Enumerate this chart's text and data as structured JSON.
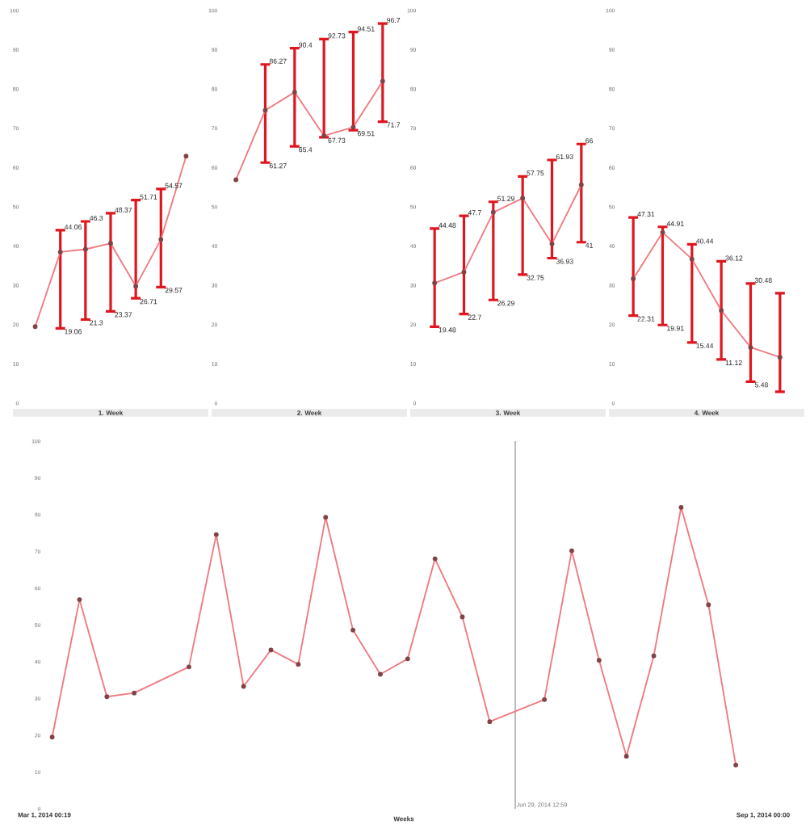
{
  "chart_data": [
    {
      "type": "line",
      "xlabel": "1. Week",
      "categories": [
        null,
        null,
        null,
        null,
        null,
        null,
        null
      ],
      "values": [
        19.5,
        38.5,
        39.2,
        40.7,
        29.8,
        41.7,
        62.9
      ],
      "errors": [
        null,
        [
          19.06,
          44.06
        ],
        [
          21.3,
          46.3
        ],
        [
          23.37,
          48.37
        ],
        [
          26.71,
          51.71
        ],
        [
          29.57,
          54.57
        ],
        null
      ],
      "color": "#ef7a80",
      "marker": "circle",
      "ylim": [
        0,
        100
      ],
      "yticks": [
        0,
        10,
        20,
        30,
        40,
        50,
        60,
        70,
        80,
        90,
        100
      ],
      "annotations": [
        "44.06",
        "19.06",
        "46.3",
        "21.3",
        "48.37",
        "23.37",
        "51.71",
        "26.71",
        "54.57",
        "29.57"
      ]
    },
    {
      "type": "line",
      "xlabel": "2. Week",
      "categories": [
        null,
        null,
        null,
        null,
        null,
        null
      ],
      "values": [
        56.9,
        74.6,
        79.2,
        68.1,
        70.3,
        82.0
      ],
      "errors": [
        null,
        [
          61.27,
          86.27
        ],
        [
          65.4,
          90.4
        ],
        [
          67.73,
          92.73
        ],
        [
          69.51,
          94.51
        ],
        [
          71.7,
          96.7
        ]
      ],
      "color": "#ef7a80",
      "marker": "circle",
      "ylim": [
        0,
        100
      ],
      "yticks": [
        0,
        10,
        20,
        30,
        40,
        50,
        60,
        70,
        80,
        90,
        100
      ],
      "annotations": [
        "86.27",
        "61.27",
        "90.4",
        "65.4",
        "92.73",
        "67.73",
        "94.51",
        "69.51",
        "96.7",
        "71.7"
      ]
    },
    {
      "type": "line",
      "xlabel": "3. Week",
      "categories": [
        null,
        null,
        null,
        null,
        null,
        null
      ],
      "values": [
        30.6,
        33.4,
        48.6,
        52.2,
        40.6,
        55.6
      ],
      "errors": [
        [
          19.48,
          44.48
        ],
        [
          22.7,
          47.7
        ],
        [
          26.29,
          51.29
        ],
        [
          32.75,
          57.75
        ],
        [
          36.93,
          61.93
        ],
        [
          41,
          66
        ]
      ],
      "color": "#ef7a80",
      "marker": "circle",
      "ylim": [
        0,
        100
      ],
      "yticks": [
        0,
        10,
        20,
        30,
        40,
        50,
        60,
        70,
        80,
        90,
        100
      ],
      "annotations": [
        "44.48",
        "19.48",
        "47.7",
        "22.7",
        "51.29",
        "26.29",
        "57.75",
        "32.75",
        "61.93",
        "36.93",
        "66",
        "41"
      ]
    },
    {
      "type": "line",
      "xlabel": "4. Week",
      "categories": [
        null,
        null,
        null,
        null,
        null,
        null
      ],
      "values": [
        31.7,
        43.5,
        36.7,
        23.6,
        14.2,
        11.7
      ],
      "errors": [
        [
          22.31,
          47.31
        ],
        [
          19.91,
          44.91
        ],
        [
          15.44,
          40.44
        ],
        [
          11.12,
          36.12
        ],
        [
          5.48,
          30.48
        ],
        [
          2.9,
          28.0
        ]
      ],
      "color": "#ef7a80",
      "marker": "circle",
      "ylim": [
        0,
        100
      ],
      "yticks": [
        0,
        10,
        20,
        30,
        40,
        50,
        60,
        70,
        80,
        90,
        100
      ],
      "annotations": [
        "47.31",
        "22.31",
        "44.91",
        "19.91",
        "40.44",
        "15.44",
        "36.12",
        "11.12",
        "30.48",
        "5.48"
      ]
    },
    {
      "type": "line",
      "xlabel": "Weeks",
      "x": [
        "2014-03-03",
        "2014-03-10",
        "2014-03-17",
        "2014-03-24",
        "2014-04-07",
        "2014-04-14",
        "2014-04-21",
        "2014-04-28",
        "2014-05-05",
        "2014-05-12",
        "2014-05-19",
        "2014-05-26",
        "2014-06-02",
        "2014-06-09",
        "2014-06-16",
        "2014-06-23",
        "2014-07-07",
        "2014-07-14",
        "2014-07-21",
        "2014-07-28",
        "2014-08-04",
        "2014-08-11",
        "2014-08-18",
        "2014-08-25"
      ],
      "values": [
        19.5,
        56.9,
        30.5,
        31.5,
        38.6,
        74.6,
        33.3,
        43.2,
        39.3,
        79.3,
        48.6,
        36.6,
        40.8,
        68.0,
        52.2,
        23.7,
        29.7,
        70.2,
        40.4,
        14.3,
        41.6,
        82.0,
        55.5,
        11.9
      ],
      "color": "#ef7a80",
      "marker": "circle",
      "xlim": [
        "2014-03-01T00:19",
        "2014-09-01T00:00"
      ],
      "xticks": [
        {
          "value": "2014-03-01T00:19",
          "label": "Mar 1, 2014 00:19"
        },
        {
          "value": "2014-09-01T00:00",
          "label": "Sep 1, 2014 00:00"
        }
      ],
      "ylim": [
        0,
        100
      ],
      "yticks": [
        0,
        10,
        20,
        30,
        40,
        50,
        60,
        70,
        80,
        90,
        100
      ],
      "ref_lines": [
        {
          "axis": "x",
          "value": "2014-06-29T12:59",
          "label": "Jun 29, 2014 12:59",
          "color": "#555555"
        }
      ]
    }
  ]
}
